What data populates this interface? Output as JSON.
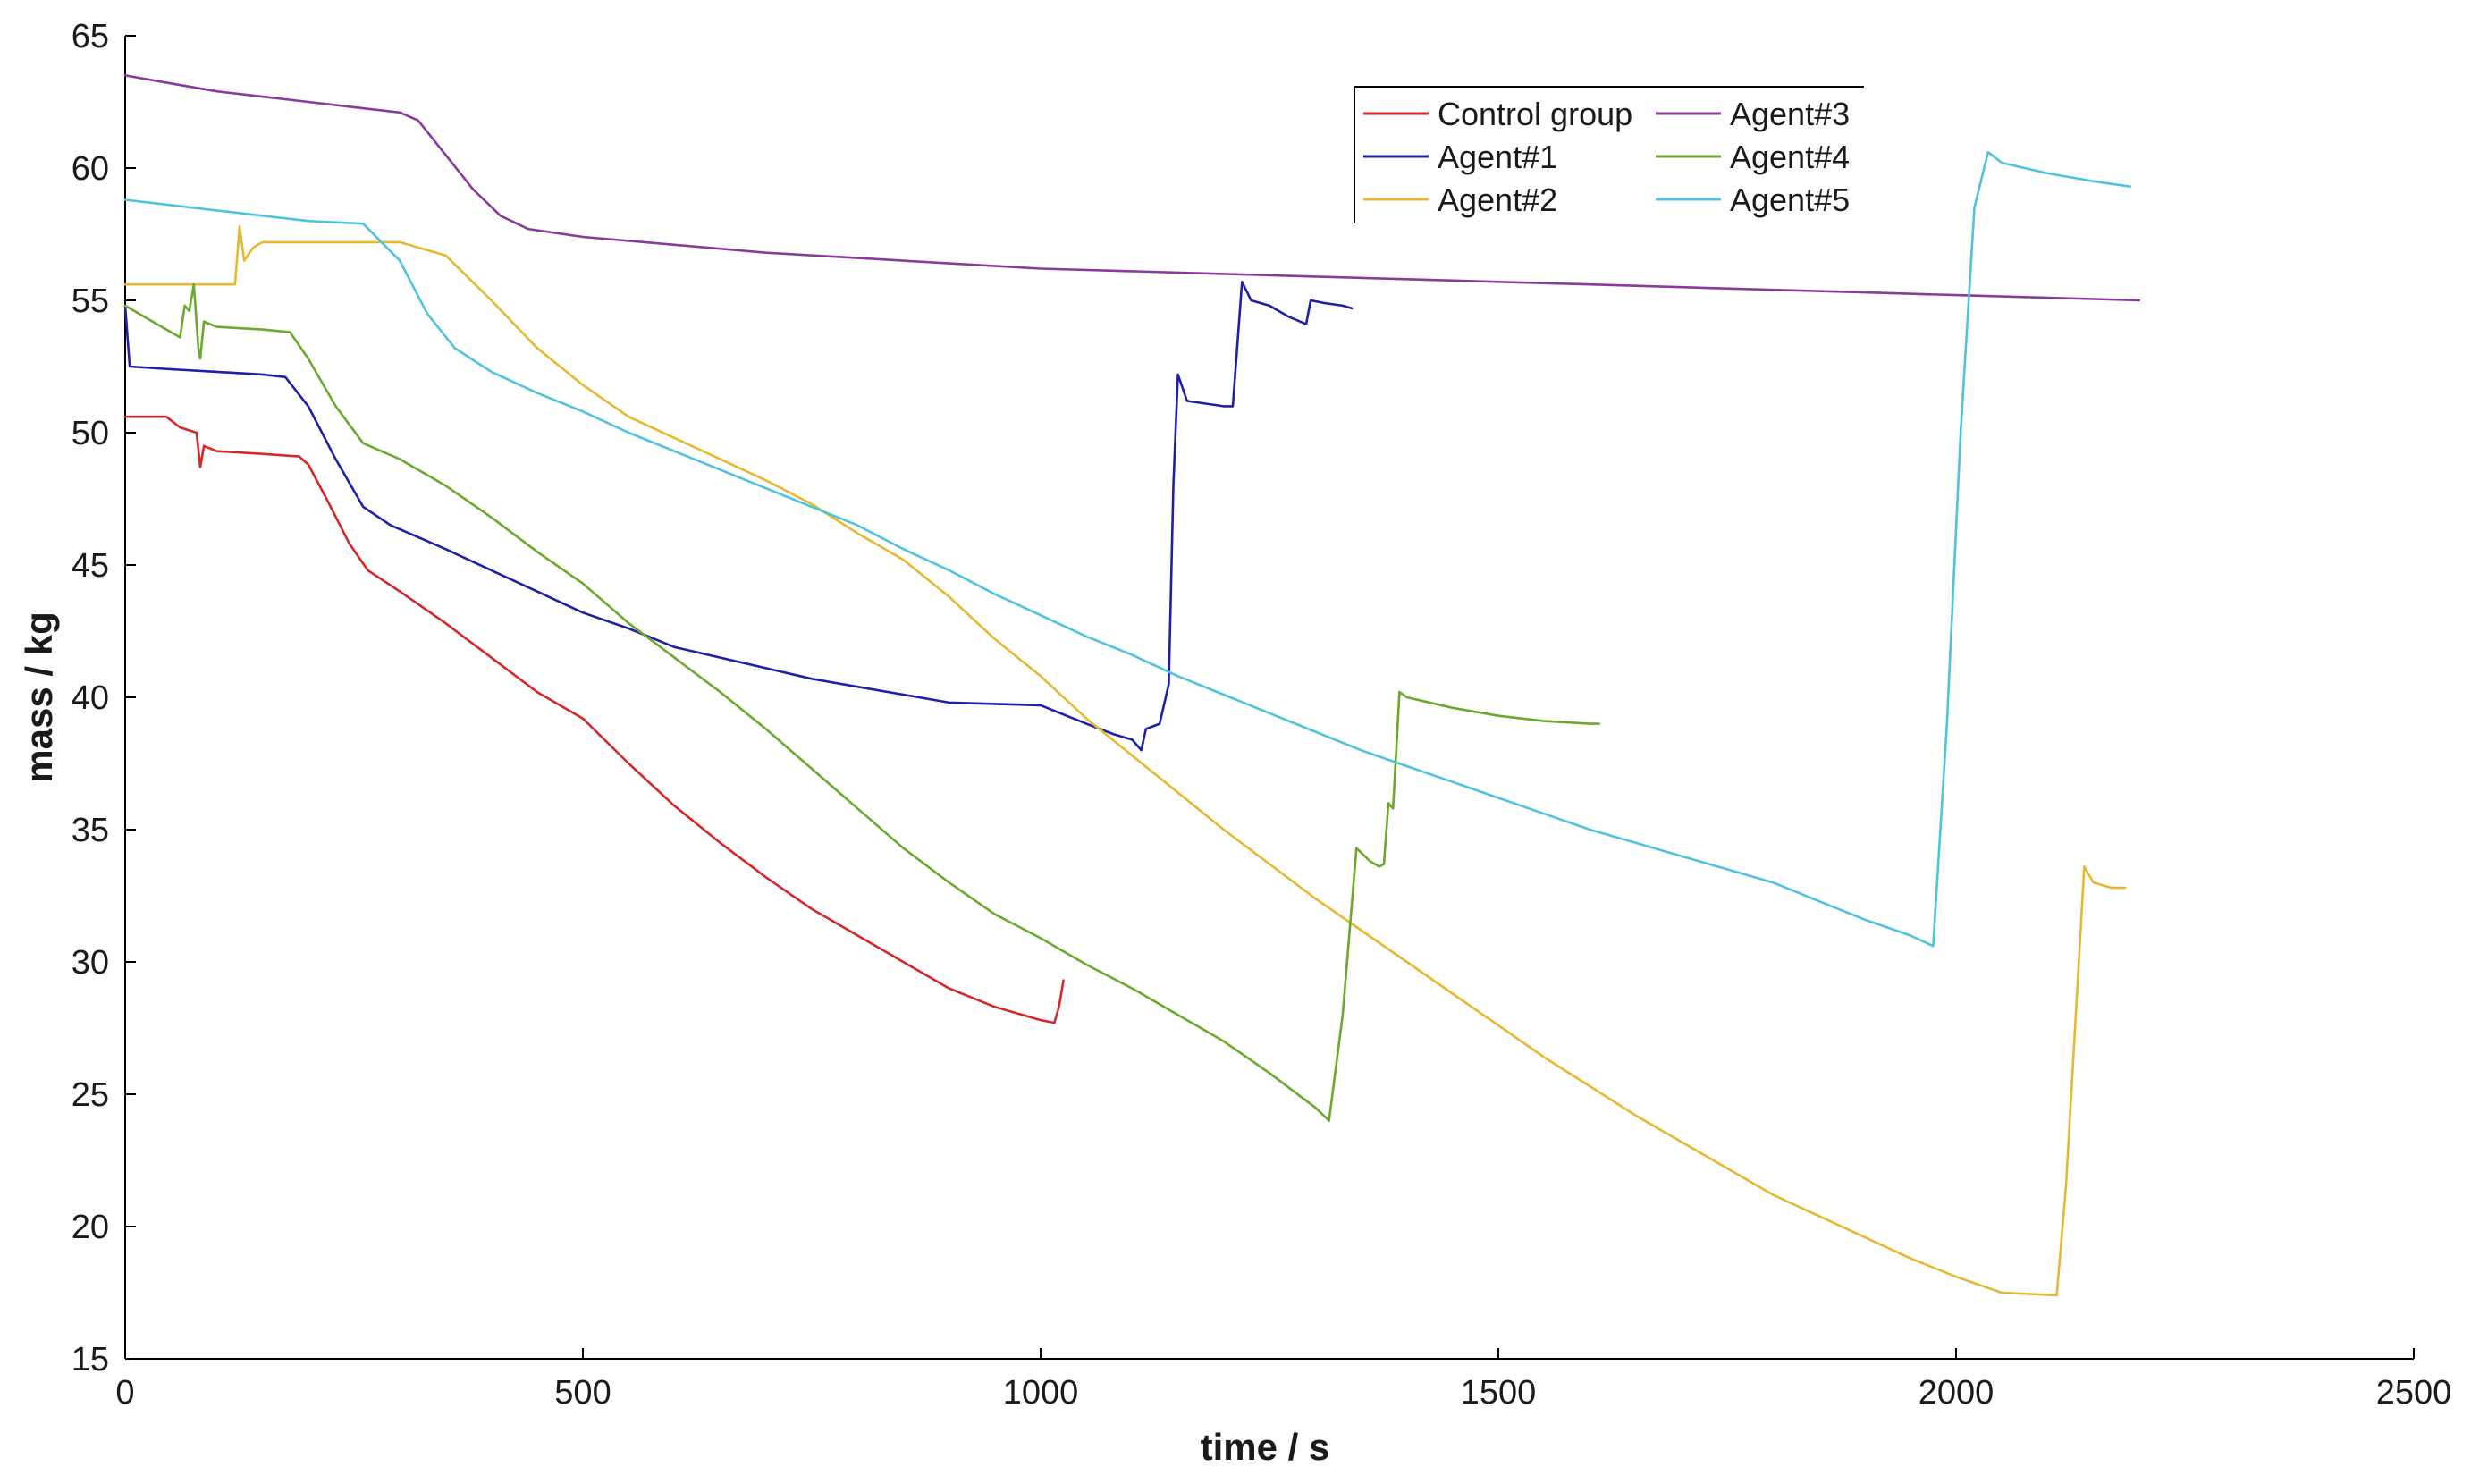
{
  "chart_data": {
    "type": "line",
    "title": "",
    "xlabel": "time / s",
    "ylabel": "mass / kg",
    "xlim": [
      0,
      2500
    ],
    "ylim": [
      15,
      65
    ],
    "xticks": [
      0,
      500,
      1000,
      1500,
      2000,
      2500
    ],
    "yticks": [
      15,
      20,
      25,
      30,
      35,
      40,
      45,
      50,
      55,
      60,
      65
    ],
    "grid": false,
    "legend_position": "top-right",
    "series": [
      {
        "name": "Control group",
        "color": "#d62728",
        "points": [
          [
            0,
            50.6
          ],
          [
            45,
            50.6
          ],
          [
            60,
            50.2
          ],
          [
            78,
            50.0
          ],
          [
            82,
            48.7
          ],
          [
            86,
            49.5
          ],
          [
            100,
            49.3
          ],
          [
            150,
            49.2
          ],
          [
            190,
            49.1
          ],
          [
            200,
            48.8
          ],
          [
            220,
            47.5
          ],
          [
            245,
            45.8
          ],
          [
            265,
            44.8
          ],
          [
            300,
            44.0
          ],
          [
            350,
            42.8
          ],
          [
            400,
            41.5
          ],
          [
            450,
            40.2
          ],
          [
            500,
            39.2
          ],
          [
            550,
            37.5
          ],
          [
            600,
            35.9
          ],
          [
            650,
            34.5
          ],
          [
            700,
            33.2
          ],
          [
            750,
            32.0
          ],
          [
            800,
            31.0
          ],
          [
            850,
            30.0
          ],
          [
            900,
            29.0
          ],
          [
            950,
            28.3
          ],
          [
            1000,
            27.8
          ],
          [
            1015,
            27.7
          ],
          [
            1020,
            28.3
          ],
          [
            1025,
            29.3
          ]
        ]
      },
      {
        "name": "Agent#1",
        "color": "#1f1fa8",
        "points": [
          [
            0,
            54.8
          ],
          [
            5,
            52.5
          ],
          [
            50,
            52.4
          ],
          [
            100,
            52.3
          ],
          [
            150,
            52.2
          ],
          [
            175,
            52.1
          ],
          [
            200,
            51.0
          ],
          [
            230,
            49.0
          ],
          [
            260,
            47.2
          ],
          [
            290,
            46.5
          ],
          [
            350,
            45.6
          ],
          [
            400,
            44.8
          ],
          [
            450,
            44.0
          ],
          [
            500,
            43.2
          ],
          [
            550,
            42.6
          ],
          [
            600,
            41.9
          ],
          [
            650,
            41.5
          ],
          [
            700,
            41.1
          ],
          [
            750,
            40.7
          ],
          [
            800,
            40.4
          ],
          [
            850,
            40.1
          ],
          [
            900,
            39.8
          ],
          [
            1000,
            39.7
          ],
          [
            1050,
            39.0
          ],
          [
            1080,
            38.6
          ],
          [
            1100,
            38.4
          ],
          [
            1110,
            38.0
          ],
          [
            1115,
            38.8
          ],
          [
            1130,
            39.0
          ],
          [
            1140,
            40.5
          ],
          [
            1145,
            48.0
          ],
          [
            1150,
            52.2
          ],
          [
            1160,
            51.2
          ],
          [
            1200,
            51.0
          ],
          [
            1210,
            51.0
          ],
          [
            1220,
            55.7
          ],
          [
            1230,
            55.0
          ],
          [
            1250,
            54.8
          ],
          [
            1270,
            54.4
          ],
          [
            1290,
            54.1
          ],
          [
            1295,
            55.0
          ],
          [
            1310,
            54.9
          ],
          [
            1330,
            54.8
          ],
          [
            1340,
            54.7
          ]
        ]
      },
      {
        "name": "Agent#2",
        "color": "#e6b830",
        "points": [
          [
            0,
            55.6
          ],
          [
            50,
            55.6
          ],
          [
            120,
            55.6
          ],
          [
            125,
            57.8
          ],
          [
            130,
            56.5
          ],
          [
            140,
            57.0
          ],
          [
            150,
            57.2
          ],
          [
            200,
            57.2
          ],
          [
            250,
            57.2
          ],
          [
            300,
            57.2
          ],
          [
            350,
            56.7
          ],
          [
            400,
            55.0
          ],
          [
            450,
            53.2
          ],
          [
            500,
            51.8
          ],
          [
            550,
            50.6
          ],
          [
            600,
            49.8
          ],
          [
            650,
            49.0
          ],
          [
            700,
            48.2
          ],
          [
            750,
            47.3
          ],
          [
            800,
            46.2
          ],
          [
            850,
            45.2
          ],
          [
            900,
            43.8
          ],
          [
            950,
            42.2
          ],
          [
            1000,
            40.8
          ],
          [
            1050,
            39.2
          ],
          [
            1100,
            37.8
          ],
          [
            1150,
            36.4
          ],
          [
            1200,
            35.0
          ],
          [
            1250,
            33.7
          ],
          [
            1300,
            32.4
          ],
          [
            1350,
            31.2
          ],
          [
            1400,
            30.0
          ],
          [
            1450,
            28.8
          ],
          [
            1500,
            27.6
          ],
          [
            1550,
            26.4
          ],
          [
            1600,
            25.3
          ],
          [
            1650,
            24.2
          ],
          [
            1700,
            23.2
          ],
          [
            1750,
            22.2
          ],
          [
            1800,
            21.2
          ],
          [
            1850,
            20.4
          ],
          [
            1900,
            19.6
          ],
          [
            1950,
            18.8
          ],
          [
            2000,
            18.1
          ],
          [
            2050,
            17.5
          ],
          [
            2110,
            17.4
          ],
          [
            2120,
            21.5
          ],
          [
            2130,
            27.5
          ],
          [
            2140,
            33.6
          ],
          [
            2150,
            33.0
          ],
          [
            2170,
            32.8
          ],
          [
            2185,
            32.8
          ]
        ]
      },
      {
        "name": "Agent#3",
        "color": "#8a3a9c",
        "points": [
          [
            0,
            63.5
          ],
          [
            50,
            63.2
          ],
          [
            100,
            62.9
          ],
          [
            150,
            62.7
          ],
          [
            200,
            62.5
          ],
          [
            250,
            62.3
          ],
          [
            300,
            62.1
          ],
          [
            320,
            61.8
          ],
          [
            350,
            60.5
          ],
          [
            380,
            59.2
          ],
          [
            410,
            58.2
          ],
          [
            440,
            57.7
          ],
          [
            500,
            57.4
          ],
          [
            600,
            57.1
          ],
          [
            700,
            56.8
          ],
          [
            800,
            56.6
          ],
          [
            900,
            56.4
          ],
          [
            1000,
            56.2
          ],
          [
            1100,
            56.1
          ],
          [
            1200,
            56.0
          ],
          [
            1300,
            55.9
          ],
          [
            1400,
            55.8
          ],
          [
            1500,
            55.7
          ],
          [
            1600,
            55.6
          ],
          [
            1700,
            55.5
          ],
          [
            1800,
            55.4
          ],
          [
            1900,
            55.3
          ],
          [
            2000,
            55.2
          ],
          [
            2100,
            55.1
          ],
          [
            2200,
            55.0
          ]
        ]
      },
      {
        "name": "Agent#4",
        "color": "#6aa92c",
        "points": [
          [
            0,
            54.8
          ],
          [
            30,
            54.2
          ],
          [
            60,
            53.6
          ],
          [
            65,
            54.8
          ],
          [
            70,
            54.6
          ],
          [
            75,
            55.6
          ],
          [
            80,
            53.2
          ],
          [
            82,
            52.8
          ],
          [
            86,
            54.2
          ],
          [
            100,
            54.0
          ],
          [
            150,
            53.9
          ],
          [
            180,
            53.8
          ],
          [
            200,
            52.8
          ],
          [
            230,
            51.0
          ],
          [
            260,
            49.6
          ],
          [
            300,
            49.0
          ],
          [
            350,
            48.0
          ],
          [
            400,
            46.8
          ],
          [
            450,
            45.5
          ],
          [
            500,
            44.3
          ],
          [
            550,
            42.8
          ],
          [
            600,
            41.5
          ],
          [
            650,
            40.2
          ],
          [
            700,
            38.8
          ],
          [
            750,
            37.3
          ],
          [
            800,
            35.8
          ],
          [
            850,
            34.3
          ],
          [
            900,
            33.0
          ],
          [
            950,
            31.8
          ],
          [
            1000,
            30.9
          ],
          [
            1050,
            29.9
          ],
          [
            1100,
            29.0
          ],
          [
            1150,
            28.0
          ],
          [
            1200,
            27.0
          ],
          [
            1250,
            25.8
          ],
          [
            1300,
            24.5
          ],
          [
            1315,
            24.0
          ],
          [
            1330,
            28.0
          ],
          [
            1345,
            34.3
          ],
          [
            1360,
            33.8
          ],
          [
            1370,
            33.6
          ],
          [
            1375,
            33.7
          ],
          [
            1380,
            36.0
          ],
          [
            1385,
            35.8
          ],
          [
            1392,
            40.2
          ],
          [
            1400,
            40.0
          ],
          [
            1450,
            39.6
          ],
          [
            1500,
            39.3
          ],
          [
            1550,
            39.1
          ],
          [
            1600,
            39.0
          ],
          [
            1610,
            39.0
          ]
        ]
      },
      {
        "name": "Agent#5",
        "color": "#4fc3dc",
        "points": [
          [
            0,
            58.8
          ],
          [
            50,
            58.6
          ],
          [
            100,
            58.4
          ],
          [
            150,
            58.2
          ],
          [
            200,
            58.0
          ],
          [
            260,
            57.9
          ],
          [
            300,
            56.5
          ],
          [
            330,
            54.5
          ],
          [
            360,
            53.2
          ],
          [
            400,
            52.3
          ],
          [
            450,
            51.5
          ],
          [
            500,
            50.8
          ],
          [
            550,
            50.0
          ],
          [
            600,
            49.3
          ],
          [
            650,
            48.6
          ],
          [
            700,
            47.9
          ],
          [
            750,
            47.2
          ],
          [
            800,
            46.5
          ],
          [
            850,
            45.6
          ],
          [
            900,
            44.8
          ],
          [
            950,
            43.9
          ],
          [
            1000,
            43.1
          ],
          [
            1050,
            42.3
          ],
          [
            1100,
            41.6
          ],
          [
            1150,
            40.8
          ],
          [
            1200,
            40.1
          ],
          [
            1250,
            39.4
          ],
          [
            1300,
            38.7
          ],
          [
            1350,
            38.0
          ],
          [
            1400,
            37.4
          ],
          [
            1450,
            36.8
          ],
          [
            1500,
            36.2
          ],
          [
            1550,
            35.6
          ],
          [
            1600,
            35.0
          ],
          [
            1650,
            34.5
          ],
          [
            1700,
            34.0
          ],
          [
            1750,
            33.5
          ],
          [
            1800,
            33.0
          ],
          [
            1850,
            32.3
          ],
          [
            1900,
            31.6
          ],
          [
            1950,
            31.0
          ],
          [
            1975,
            30.6
          ],
          [
            1990,
            39.0
          ],
          [
            2005,
            50.0
          ],
          [
            2020,
            58.5
          ],
          [
            2035,
            60.6
          ],
          [
            2050,
            60.2
          ],
          [
            2100,
            59.8
          ],
          [
            2150,
            59.5
          ],
          [
            2190,
            59.3
          ]
        ]
      }
    ]
  }
}
